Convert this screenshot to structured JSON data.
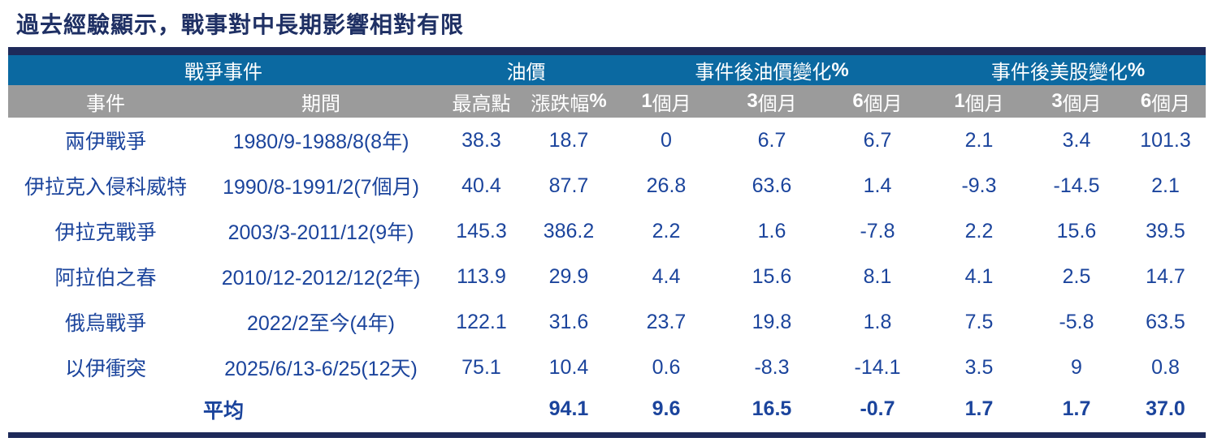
{
  "title": "過去經驗顯示，戰事對中長期影響相對有限",
  "colors": {
    "navy_bar": "#1E2A5A",
    "header_blue": "#0B69A1",
    "header_gray": "#9B9B9B",
    "title_text": "#1F3064",
    "data_text": "#1B449C"
  },
  "table": {
    "groups": [
      {
        "text": "戰爭事件"
      },
      {
        "text": "油價"
      },
      {
        "text": "事件後油價變化",
        "bold": "%"
      },
      {
        "text": "事件後美股變化",
        "bold": "%"
      }
    ],
    "columns": [
      {
        "text": "事件"
      },
      {
        "text": "期間"
      },
      {
        "text": "最高點"
      },
      {
        "text": "漲跌幅",
        "bold": "%"
      },
      {
        "num": "1",
        "text": "個月"
      },
      {
        "num": "3",
        "text": "個月"
      },
      {
        "num": "6",
        "text": "個月"
      },
      {
        "num": "1",
        "text": "個月"
      },
      {
        "num": "3",
        "text": "個月"
      },
      {
        "num": "6",
        "text": "個月"
      }
    ],
    "rows": [
      [
        "兩伊戰爭",
        "1980/9-1988/8(8年)",
        "38.3",
        "18.7",
        "0",
        "6.7",
        "6.7",
        "2.1",
        "3.4",
        "101.3"
      ],
      [
        "伊拉克入侵科威特",
        "1990/8-1991/2(7個月)",
        "40.4",
        "87.7",
        "26.8",
        "63.6",
        "1.4",
        "-9.3",
        "-14.5",
        "2.1"
      ],
      [
        "伊拉克戰爭",
        "2003/3-2011/12(9年)",
        "145.3",
        "386.2",
        "2.2",
        "1.6",
        "-7.8",
        "2.2",
        "15.6",
        "39.5"
      ],
      [
        "阿拉伯之春",
        "2010/12-2012/12(2年)",
        "113.9",
        "29.9",
        "4.4",
        "15.6",
        "8.1",
        "4.1",
        "2.5",
        "14.7"
      ],
      [
        "俄烏戰爭",
        "2022/2至今(4年)",
        "122.1",
        "31.6",
        "23.7",
        "19.8",
        "1.8",
        "7.5",
        "-5.8",
        "63.5"
      ],
      [
        "以伊衝突",
        "2025/6/13-6/25(12天)",
        "75.1",
        "10.4",
        "0.6",
        "-8.3",
        "-14.1",
        "3.5",
        "9",
        "0.8"
      ]
    ],
    "average": {
      "label": "平均",
      "cells": [
        "",
        "94.1",
        "9.6",
        "16.5",
        "-0.7",
        "1.7",
        "1.7",
        "37.0"
      ]
    }
  },
  "chart_data": {
    "type": "table",
    "title": "過去經驗顯示，戰事對中長期影響相對有限",
    "column_groups": [
      "戰爭事件",
      "油價",
      "事件後油價變化%",
      "事件後美股變化%"
    ],
    "columns": [
      "事件",
      "期間",
      "油價最高點",
      "油價漲跌幅%",
      "事件後油價變化%1個月",
      "事件後油價變化%3個月",
      "事件後油價變化%6個月",
      "事件後美股變化%1個月",
      "事件後美股變化%3個月",
      "事件後美股變化%6個月"
    ],
    "rows": [
      [
        "兩伊戰爭",
        "1980/9-1988/8(8年)",
        38.3,
        18.7,
        0,
        6.7,
        6.7,
        2.1,
        3.4,
        101.3
      ],
      [
        "伊拉克入侵科威特",
        "1990/8-1991/2(7個月)",
        40.4,
        87.7,
        26.8,
        63.6,
        1.4,
        -9.3,
        -14.5,
        2.1
      ],
      [
        "伊拉克戰爭",
        "2003/3-2011/12(9年)",
        145.3,
        386.2,
        2.2,
        1.6,
        -7.8,
        2.2,
        15.6,
        39.5
      ],
      [
        "阿拉伯之春",
        "2010/12-2012/12(2年)",
        113.9,
        29.9,
        4.4,
        15.6,
        8.1,
        4.1,
        2.5,
        14.7
      ],
      [
        "俄烏戰爭",
        "2022/2至今(4年)",
        122.1,
        31.6,
        23.7,
        19.8,
        1.8,
        7.5,
        -5.8,
        63.5
      ],
      [
        "以伊衝突",
        "2025/6/13-6/25(12天)",
        75.1,
        10.4,
        0.6,
        -8.3,
        -14.1,
        3.5,
        9,
        0.8
      ]
    ],
    "average_row": [
      "平均",
      null,
      null,
      94.1,
      9.6,
      16.5,
      -0.7,
      1.7,
      1.7,
      37.0
    ]
  }
}
